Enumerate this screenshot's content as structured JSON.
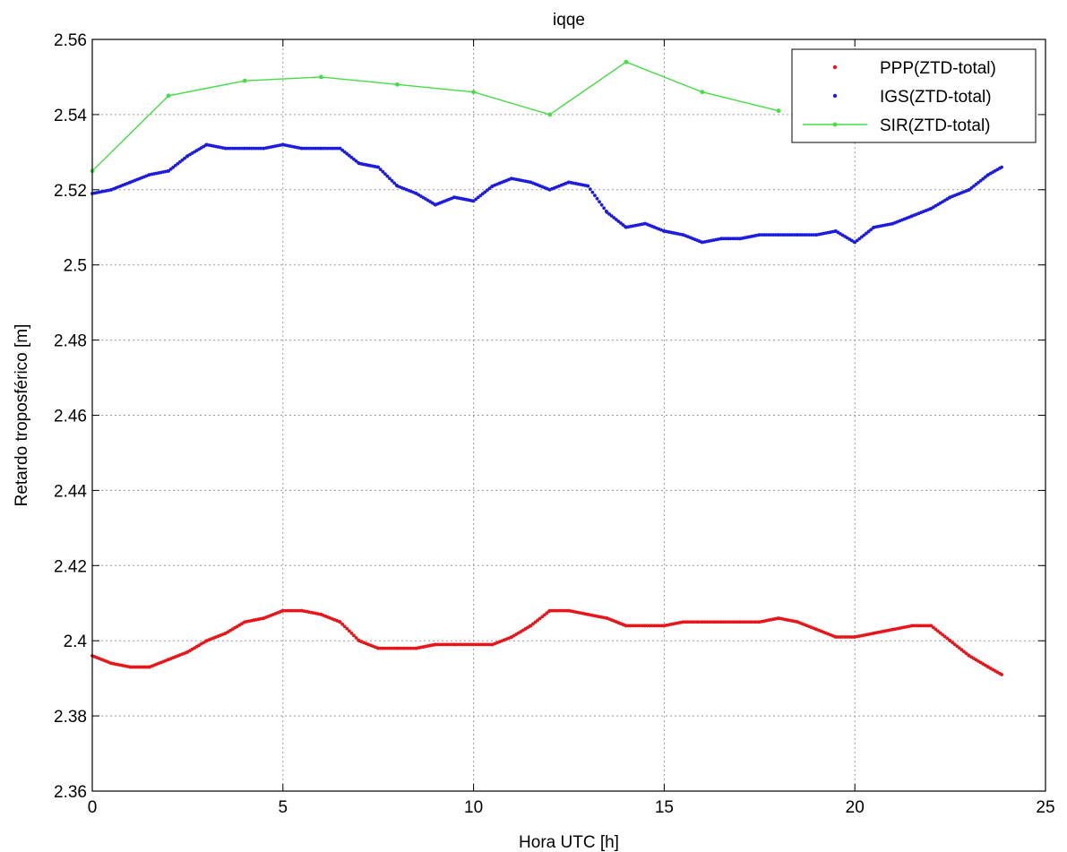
{
  "chart_data": {
    "type": "scatter",
    "title": "iqqe",
    "xlabel": "Hora UTC [h]",
    "ylabel": "Retardo troposférico [m]",
    "xlim": [
      0,
      25
    ],
    "ylim": [
      2.36,
      2.56
    ],
    "xticks": [
      0,
      5,
      10,
      15,
      20,
      25
    ],
    "yticks": [
      2.36,
      2.38,
      2.4,
      2.42,
      2.44,
      2.46,
      2.48,
      2.5,
      2.52,
      2.54,
      2.56
    ],
    "xtick_labels": [
      "0",
      "5",
      "10",
      "15",
      "20",
      "25"
    ],
    "ytick_labels": [
      "2.36",
      "2.38",
      "2.4",
      "2.42",
      "2.44",
      "2.46",
      "2.48",
      "2.5",
      "2.52",
      "2.54",
      "2.56"
    ],
    "grid": true,
    "legend_position": "top-right",
    "series": [
      {
        "name": "PPP(ZTD-total)",
        "style": "markers",
        "color": "#e8141a",
        "x": [
          0,
          0.5,
          1,
          1.5,
          2,
          2.5,
          3,
          3.5,
          4,
          4.5,
          5,
          5.5,
          6,
          6.5,
          7,
          7.5,
          8,
          8.5,
          9,
          9.5,
          10,
          10.5,
          11,
          11.5,
          12,
          12.5,
          13,
          13.5,
          14,
          14.5,
          15,
          15.5,
          16,
          16.5,
          17,
          17.5,
          18,
          18.5,
          19,
          19.5,
          20,
          20.5,
          21,
          21.5,
          22,
          22.5,
          23,
          23.5,
          23.85
        ],
        "y": [
          2.396,
          2.394,
          2.393,
          2.393,
          2.395,
          2.397,
          2.4,
          2.402,
          2.405,
          2.406,
          2.408,
          2.408,
          2.407,
          2.405,
          2.4,
          2.398,
          2.398,
          2.398,
          2.399,
          2.399,
          2.399,
          2.399,
          2.401,
          2.404,
          2.408,
          2.408,
          2.407,
          2.406,
          2.404,
          2.404,
          2.404,
          2.405,
          2.405,
          2.405,
          2.405,
          2.405,
          2.406,
          2.405,
          2.403,
          2.401,
          2.401,
          2.402,
          2.403,
          2.404,
          2.404,
          2.4,
          2.396,
          2.393,
          2.391
        ]
      },
      {
        "name": "IGS(ZTD-total)",
        "style": "markers",
        "color": "#1c1ce0",
        "x": [
          0,
          0.5,
          1,
          1.5,
          2,
          2.5,
          3,
          3.5,
          4,
          4.5,
          5,
          5.5,
          6,
          6.5,
          7,
          7.5,
          8,
          8.5,
          9,
          9.5,
          10,
          10.5,
          11,
          11.5,
          12,
          12.5,
          13,
          13.5,
          14,
          14.5,
          15,
          15.5,
          16,
          16.5,
          17,
          17.5,
          18,
          18.5,
          19,
          19.5,
          20,
          20.5,
          21,
          21.5,
          22,
          22.5,
          23,
          23.5,
          23.85
        ],
        "y": [
          2.519,
          2.52,
          2.522,
          2.524,
          2.525,
          2.529,
          2.532,
          2.531,
          2.531,
          2.531,
          2.532,
          2.531,
          2.531,
          2.531,
          2.527,
          2.526,
          2.521,
          2.519,
          2.516,
          2.518,
          2.517,
          2.521,
          2.523,
          2.522,
          2.52,
          2.522,
          2.521,
          2.514,
          2.51,
          2.511,
          2.509,
          2.508,
          2.506,
          2.507,
          2.507,
          2.508,
          2.508,
          2.508,
          2.508,
          2.509,
          2.506,
          2.51,
          2.511,
          2.513,
          2.515,
          2.518,
          2.52,
          2.524,
          2.526
        ]
      },
      {
        "name": "SIR(ZTD-total)",
        "style": "line-markers",
        "color": "#44dd44",
        "x": [
          0,
          2,
          4,
          6,
          8,
          10,
          12,
          14,
          16,
          18
        ],
        "y": [
          2.525,
          2.545,
          2.549,
          2.55,
          2.548,
          2.546,
          2.54,
          2.554,
          2.546,
          2.541
        ]
      }
    ]
  }
}
